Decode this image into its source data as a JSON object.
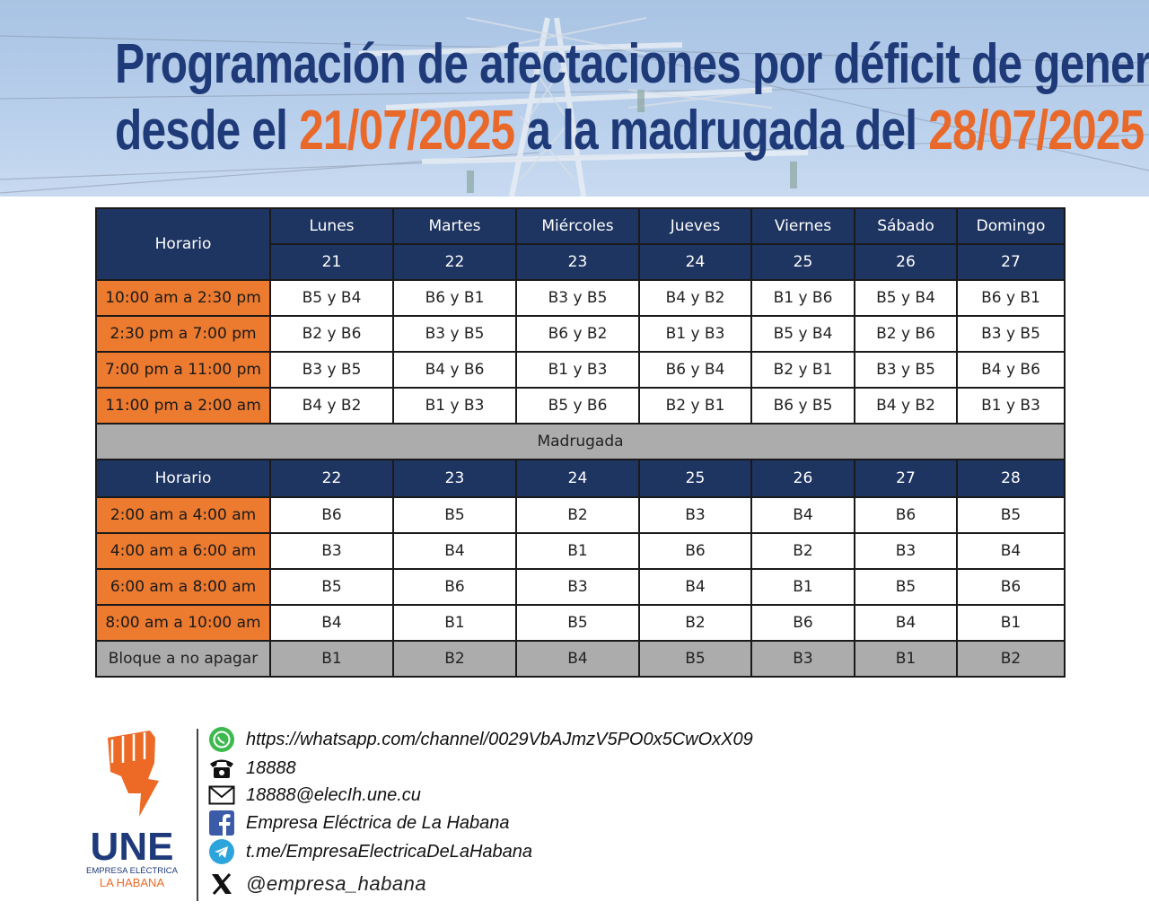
{
  "header": {
    "title_line1": "Programación de afectaciones por déficit de generación",
    "title_line2_prefix": "desde el ",
    "date_start": "21/07/2025",
    "title_line2_middle": " a la madrugada del ",
    "date_end": "28/07/2025"
  },
  "table": {
    "horario_label": "Horario",
    "days": [
      "Lunes",
      "Martes",
      "Miércoles",
      "Jueves",
      "Viernes",
      "Sábado",
      "Domingo"
    ],
    "dates": [
      "21",
      "22",
      "23",
      "24",
      "25",
      "26",
      "27"
    ],
    "day_rows": [
      {
        "slot": "10:00 am a 2:30 pm",
        "cells": [
          "B5 y B4",
          "B6 y B1",
          "B3 y B5",
          "B4 y B2",
          "B1 y B6",
          "B5 y B4",
          "B6 y B1"
        ]
      },
      {
        "slot": "2:30 pm a 7:00 pm",
        "cells": [
          "B2 y B6",
          "B3 y B5",
          "B6 y B2",
          "B1 y B3",
          "B5 y B4",
          "B2 y B6",
          "B3 y B5"
        ]
      },
      {
        "slot": "7:00 pm a 11:00 pm",
        "cells": [
          "B3 y B5",
          "B4 y B6",
          "B1 y B3",
          "B6 y B4",
          "B2 y B1",
          "B3 y B5",
          "B4 y B6"
        ]
      },
      {
        "slot": "11:00 pm a 2:00 am",
        "cells": [
          "B4 y B2",
          "B1 y B3",
          "B5 y B6",
          "B2 y B1",
          "B6 y B5",
          "B4 y B2",
          "B1 y B3"
        ]
      }
    ],
    "madrugada_label": "Madrugada",
    "madrugada_dates": [
      "22",
      "23",
      "24",
      "25",
      "26",
      "27",
      "28"
    ],
    "night_rows": [
      {
        "slot": "2:00 am a 4:00 am",
        "cells": [
          "B6",
          "B5",
          "B2",
          "B3",
          "B4",
          "B6",
          "B5"
        ]
      },
      {
        "slot": "4:00 am a 6:00 am",
        "cells": [
          "B3",
          "B4",
          "B1",
          "B6",
          "B2",
          "B3",
          "B4"
        ]
      },
      {
        "slot": "6:00 am a 8:00 am",
        "cells": [
          "B5",
          "B6",
          "B3",
          "B4",
          "B1",
          "B5",
          "B6"
        ]
      },
      {
        "slot": "8:00 am a 10:00 am",
        "cells": [
          "B4",
          "B1",
          "B5",
          "B2",
          "B6",
          "B4",
          "B1"
        ]
      }
    ],
    "no_apagar": {
      "slot": "Bloque a no apagar",
      "cells": [
        "B1",
        "B2",
        "B4",
        "B5",
        "B3",
        "B1",
        "B2"
      ]
    }
  },
  "footer": {
    "logo": {
      "name": "UNE",
      "sub1": "EMPRESA ELÉCTRICA",
      "sub2": "LA HABANA"
    },
    "contacts": [
      {
        "icon": "whatsapp-icon",
        "text": "https://whatsapp.com/channel/0029VbAJmzV5PO0x5CwOxX09"
      },
      {
        "icon": "telephone-icon",
        "text": "18888"
      },
      {
        "icon": "envelope-icon",
        "text": "18888@elecIh.une.cu"
      },
      {
        "icon": "facebook-icon",
        "text": "Empresa Eléctrica de La Habana"
      },
      {
        "icon": "telegram-icon",
        "text": "t.me/EmpresaElectricaDeLaHabana"
      },
      {
        "icon": "x-icon",
        "text": "@empresa_habana"
      }
    ]
  },
  "colors": {
    "navy": "#1e3461",
    "orange": "#ec7a2f",
    "grey": "#acacac",
    "title_blue": "#1f3a78",
    "date_orange": "#e8692a"
  }
}
